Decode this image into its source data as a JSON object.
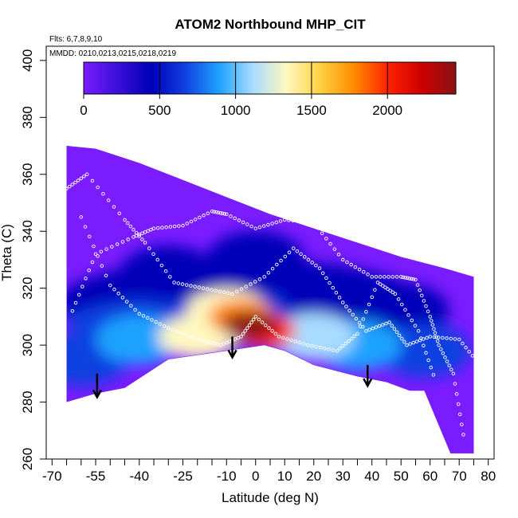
{
  "title": "ATOM2 Northbound MHP_CIT",
  "flights_note": "Flts: 6,7,8,9,10",
  "dates_note": "MMDD: 0210,0213,0215,0218,0219",
  "chart_data": {
    "type": "heatmap",
    "title": "ATOM2 Northbound MHP_CIT",
    "xlabel": "Latitude (deg N)",
    "ylabel": "Theta (C)",
    "xlim": [
      -72,
      82
    ],
    "ylim": [
      260,
      405
    ],
    "x_ticks_labeled": [
      -70,
      -55,
      -40,
      -25,
      -10,
      0,
      10,
      20,
      30,
      40,
      50,
      60,
      70,
      80
    ],
    "x_tick_labels": [
      "-70",
      "-55",
      "-40",
      "-25",
      "-10",
      "0",
      "10",
      "20",
      "30",
      "40",
      "50",
      "60",
      "70",
      "80"
    ],
    "x_ticks_minor": [
      -65,
      -60,
      -50,
      -45,
      -35,
      -30,
      -20,
      -15,
      -5,
      5,
      15,
      25,
      35,
      45,
      55,
      65,
      75
    ],
    "y_ticks": [
      260,
      280,
      300,
      320,
      340,
      360,
      380,
      400
    ],
    "y_tick_labels": [
      "260",
      "280",
      "300",
      "320",
      "340",
      "360",
      "380",
      "400"
    ],
    "colorbar": {
      "min": 0,
      "max": 2450,
      "ticks": [
        0,
        500,
        1000,
        1500,
        2000
      ],
      "tick_labels": [
        "0",
        "500",
        "1000",
        "1500",
        "2000"
      ],
      "colors": [
        "#7a1cff",
        "#3a0fd8",
        "#0000b8",
        "#1040e0",
        "#1ea2ff",
        "#a8dcff",
        "#fff8c0",
        "#ffd040",
        "#ff8a00",
        "#ff2000",
        "#cc0000",
        "#8a1414"
      ]
    },
    "upper_boundary": [
      [
        -65,
        370
      ],
      [
        -55,
        369
      ],
      [
        -40,
        364
      ],
      [
        -25,
        358
      ],
      [
        -10,
        352
      ],
      [
        5,
        346
      ],
      [
        20,
        341
      ],
      [
        35,
        336
      ],
      [
        50,
        331
      ],
      [
        65,
        327
      ],
      [
        75,
        324
      ]
    ],
    "lower_boundary": [
      [
        -65,
        280
      ],
      [
        -55,
        283
      ],
      [
        -45,
        285
      ],
      [
        -30,
        295
      ],
      [
        -10,
        298
      ],
      [
        3,
        300
      ],
      [
        10,
        298
      ],
      [
        20,
        293
      ],
      [
        35,
        289
      ],
      [
        45,
        287
      ],
      [
        53,
        284
      ],
      [
        58,
        284
      ],
      [
        67,
        262
      ],
      [
        75,
        262
      ]
    ],
    "blobs": [
      {
        "lat": -2,
        "theta": 307,
        "value": 2350
      },
      {
        "lat": 3,
        "theta": 305,
        "value": 2000
      },
      {
        "lat": -5,
        "theta": 310,
        "value": 1850
      },
      {
        "lat": -20,
        "theta": 303,
        "value": 1350
      },
      {
        "lat": -10,
        "theta": 312,
        "value": 1250
      },
      {
        "lat": 20,
        "theta": 303,
        "value": 1100
      },
      {
        "lat": -40,
        "theta": 302,
        "value": 950
      },
      {
        "lat": 35,
        "theta": 300,
        "value": 900
      },
      {
        "lat": -60,
        "theta": 295,
        "value": 700
      },
      {
        "lat": 58,
        "theta": 298,
        "value": 700
      },
      {
        "lat": 50,
        "theta": 312,
        "value": 550
      },
      {
        "lat": -30,
        "theta": 325,
        "value": 500
      },
      {
        "lat": 25,
        "theta": 318,
        "value": 500
      },
      {
        "lat": 0,
        "theta": 330,
        "value": 450
      }
    ],
    "arrows": [
      {
        "lat": -54.5,
        "theta_top": 290,
        "theta_tip": 282
      },
      {
        "lat": -8,
        "theta_top": 303,
        "theta_tip": 296
      },
      {
        "lat": 38.5,
        "theta_top": 293,
        "theta_tip": 286
      }
    ],
    "obs_tracks": [
      [
        [
          -63,
          312
        ],
        [
          -55,
          332
        ],
        [
          -42,
          338
        ],
        [
          -35,
          341
        ],
        [
          -25,
          342
        ],
        [
          -15,
          347
        ],
        [
          -10,
          346
        ],
        [
          0,
          341
        ],
        [
          10,
          344
        ],
        [
          20,
          343
        ],
        [
          30,
          330
        ],
        [
          40,
          324
        ],
        [
          50,
          324
        ],
        [
          55,
          323
        ],
        [
          60,
          310
        ],
        [
          63,
          300
        ],
        [
          68,
          290
        ],
        [
          72,
          265
        ]
      ],
      [
        [
          -60,
          345
        ],
        [
          -50,
          321
        ],
        [
          -40,
          311
        ],
        [
          -30,
          306
        ],
        [
          -20,
          302
        ],
        [
          -12,
          300
        ],
        [
          -5,
          303
        ],
        [
          0,
          310
        ],
        [
          8,
          303
        ],
        [
          18,
          300
        ],
        [
          28,
          298
        ],
        [
          35,
          304
        ],
        [
          42,
          322
        ],
        [
          48,
          318
        ],
        [
          56,
          305
        ],
        [
          62,
          287
        ]
      ],
      [
        [
          -65,
          355
        ],
        [
          -58,
          360
        ],
        [
          -45,
          344
        ],
        [
          -38,
          336
        ],
        [
          -28,
          322
        ],
        [
          -18,
          320
        ],
        [
          -8,
          318
        ],
        [
          3,
          324
        ],
        [
          13,
          334
        ],
        [
          22,
          327
        ],
        [
          30,
          315
        ],
        [
          38,
          305
        ],
        [
          46,
          308
        ],
        [
          52,
          300
        ],
        [
          60,
          303
        ],
        [
          70,
          302
        ],
        [
          78,
          292
        ]
      ]
    ]
  }
}
